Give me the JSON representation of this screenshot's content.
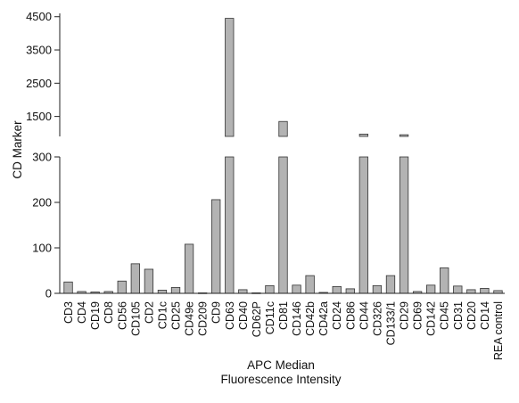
{
  "chart_data": {
    "type": "bar",
    "title": "",
    "xlabel": [
      "APC Median",
      "Fluorescence Intensity"
    ],
    "ylabel": "CD Marker",
    "y_axis": "broken",
    "lower_segment": {
      "ylim": [
        0,
        300
      ],
      "ticks": [
        0,
        100,
        200,
        300
      ]
    },
    "upper_segment": {
      "ylim": [
        900,
        4600
      ],
      "ticks": [
        1500,
        2500,
        3500,
        4500
      ]
    },
    "grid": false,
    "legend": "none",
    "bar_color": "#b3b3b3",
    "edge_color": "#333333",
    "categories": [
      "CD3",
      "CD4",
      "CD19",
      "CD8",
      "CD56",
      "CD105",
      "CD2",
      "CD1c",
      "CD25",
      "CD49e",
      "CD209",
      "CD9",
      "CD63",
      "CD40",
      "CD62P",
      "CD11c",
      "CD81",
      "CD146",
      "CD42b",
      "CD42a",
      "CD24",
      "CD86",
      "CD44",
      "CD326",
      "CD133/1",
      "CD29",
      "CD69",
      "CD142",
      "CD45",
      "CD31",
      "CD20",
      "CD14",
      "REA control"
    ],
    "values": [
      25,
      4,
      3,
      4,
      27,
      65,
      53,
      7,
      13,
      108,
      1,
      206,
      4450,
      8,
      1,
      17,
      1350,
      18,
      39,
      2,
      15,
      10,
      970,
      17,
      39,
      950,
      4,
      18,
      56,
      16,
      8,
      11,
      6
    ]
  }
}
